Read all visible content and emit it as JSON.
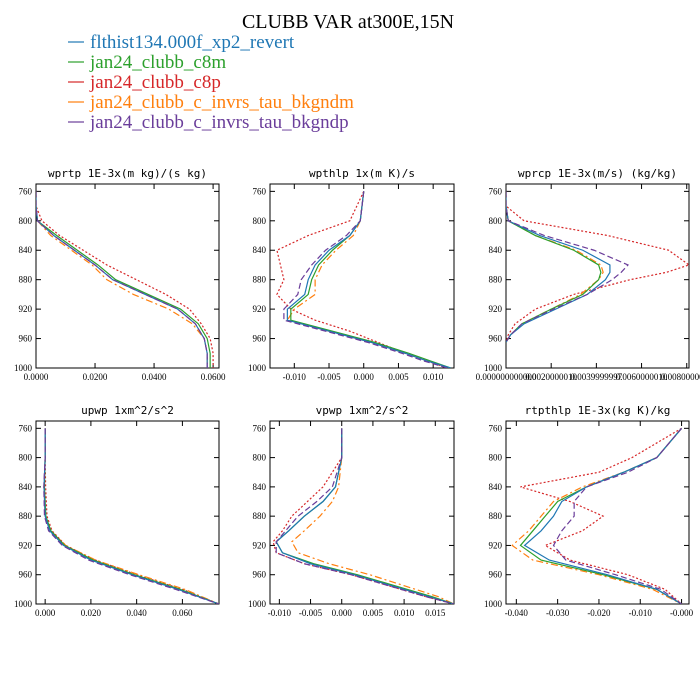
{
  "title": "CLUBB VAR at300E,15N",
  "legend": [
    {
      "label": "flthist134.000f_xp2_revert",
      "color": "#1f77b4",
      "dash": "solid"
    },
    {
      "label": "jan24_clubb_c8m",
      "color": "#2ca02c",
      "dash": "solid"
    },
    {
      "label": "jan24_clubb_c8p",
      "color": "#d62728",
      "dash": "dotted"
    },
    {
      "label": "jan24_clubb_c_invrs_tau_bkgndm",
      "color": "#ff7f0e",
      "dash": "dashdot"
    },
    {
      "label": "jan24_clubb_c_invrs_tau_bkgndp",
      "color": "#6a3d9a",
      "dash": "dashed"
    }
  ],
  "chart_data": [
    {
      "type": "line",
      "title": "wprtp  1E-3x(m kg)/(s kg)",
      "xlim": [
        0.0,
        0.062
      ],
      "ylim": [
        1000,
        750
      ],
      "reverse_y": true,
      "xticks": [
        0.0,
        0.02,
        0.04,
        0.06
      ],
      "xtick_labels": [
        "0.0000",
        "0.0200",
        "0.0400",
        "0.0600"
      ],
      "yticks": [
        760,
        800,
        840,
        880,
        920,
        960,
        1000
      ],
      "y": [
        760,
        780,
        800,
        820,
        840,
        860,
        880,
        900,
        920,
        940,
        960,
        980,
        990,
        1000
      ],
      "series": [
        {
          "name": "flthist134.000f_xp2_revert",
          "values": [
            0.0,
            0.0,
            0.0005,
            0.006,
            0.013,
            0.02,
            0.026,
            0.037,
            0.048,
            0.054,
            0.057,
            0.058,
            0.058,
            0.058
          ]
        },
        {
          "name": "jan24_clubb_c8m",
          "values": [
            0.0,
            0.0,
            0.0005,
            0.007,
            0.014,
            0.021,
            0.027,
            0.038,
            0.049,
            0.055,
            0.058,
            0.059,
            0.059,
            0.059
          ]
        },
        {
          "name": "jan24_clubb_c8p",
          "values": [
            0.0,
            0.0,
            0.002,
            0.008,
            0.016,
            0.024,
            0.034,
            0.044,
            0.052,
            0.056,
            0.059,
            0.06,
            0.06,
            0.06
          ]
        },
        {
          "name": "jan24_clubb_c_invrs_tau_bkgndm",
          "values": [
            0.0,
            0.0,
            0.0005,
            0.005,
            0.012,
            0.019,
            0.024,
            0.033,
            0.045,
            0.053,
            0.057,
            0.058,
            0.058,
            0.058
          ]
        },
        {
          "name": "jan24_clubb_c_invrs_tau_bkgndp",
          "values": [
            0.0,
            0.0,
            0.0005,
            0.006,
            0.013,
            0.02,
            0.026,
            0.037,
            0.048,
            0.054,
            0.057,
            0.058,
            0.058,
            0.058
          ]
        }
      ]
    },
    {
      "type": "line",
      "title": "wpthlp  1x(m K)/s",
      "xlim": [
        -0.0135,
        0.013
      ],
      "ylim": [
        1000,
        750
      ],
      "reverse_y": true,
      "xticks": [
        -0.01,
        -0.005,
        0.0,
        0.005,
        0.01
      ],
      "xtick_labels": [
        "-0.010",
        "-0.005",
        "0.000",
        "0.005",
        "0.010"
      ],
      "yticks": [
        760,
        800,
        840,
        880,
        920,
        960,
        1000
      ],
      "y": [
        760,
        800,
        820,
        840,
        860,
        880,
        900,
        920,
        935,
        950,
        965,
        980,
        990,
        1000
      ],
      "series": [
        {
          "name": "flthist134.000f_xp2_revert",
          "values": [
            0.0,
            -0.0005,
            -0.002,
            -0.005,
            -0.007,
            -0.008,
            -0.0085,
            -0.011,
            -0.011,
            -0.005,
            0.001,
            0.006,
            0.009,
            0.0125
          ]
        },
        {
          "name": "jan24_clubb_c8m",
          "values": [
            0.0,
            -0.0005,
            -0.002,
            -0.0045,
            -0.0065,
            -0.0075,
            -0.008,
            -0.0105,
            -0.0105,
            -0.0045,
            0.0015,
            0.0065,
            0.0095,
            0.0125
          ]
        },
        {
          "name": "jan24_clubb_c8p",
          "values": [
            0.0,
            -0.002,
            -0.008,
            -0.0125,
            -0.012,
            -0.0115,
            -0.0125,
            -0.0105,
            -0.007,
            -0.002,
            0.002,
            0.006,
            0.009,
            0.012
          ]
        },
        {
          "name": "jan24_clubb_c_invrs_tau_bkgndm",
          "values": [
            0.0,
            -0.0005,
            -0.0015,
            -0.004,
            -0.006,
            -0.007,
            -0.007,
            -0.01,
            -0.011,
            -0.005,
            0.001,
            0.006,
            0.009,
            0.0125
          ]
        },
        {
          "name": "jan24_clubb_c_invrs_tau_bkgndp",
          "values": [
            0.0,
            -0.0005,
            -0.0025,
            -0.0055,
            -0.0075,
            -0.009,
            -0.0095,
            -0.0115,
            -0.0115,
            -0.0055,
            0.0005,
            0.0055,
            0.0085,
            0.012
          ]
        }
      ]
    },
    {
      "type": "line",
      "title": "wprcp  1E-3x(m/s) (kg/kg)",
      "xlim": [
        0.0,
        0.0081
      ],
      "ylim": [
        1000,
        750
      ],
      "reverse_y": true,
      "xticks": [
        0.0,
        0.002,
        0.004,
        0.006,
        0.008
      ],
      "xtick_labels": [
        "0.000000000000",
        "0.0020000010",
        "0.0039999997",
        "0.0060000010",
        "0.0080000010"
      ],
      "yticks": [
        760,
        800,
        840,
        880,
        920,
        960,
        1000
      ],
      "y": [
        760,
        780,
        800,
        820,
        840,
        860,
        870,
        880,
        900,
        920,
        940,
        955,
        965
      ],
      "series": [
        {
          "name": "flthist134.000f_xp2_revert",
          "values": [
            0.0,
            0.0,
            0.0001,
            0.0015,
            0.0034,
            0.0046,
            0.0046,
            0.0044,
            0.0036,
            0.0022,
            0.0008,
            0.0002,
            0.0
          ]
        },
        {
          "name": "jan24_clubb_c8m",
          "values": [
            0.0,
            0.0,
            0.0001,
            0.0013,
            0.003,
            0.0041,
            0.0042,
            0.0041,
            0.0034,
            0.002,
            0.0007,
            0.0002,
            0.0
          ]
        },
        {
          "name": "jan24_clubb_c8p",
          "values": [
            0.0,
            0.0,
            0.0008,
            0.0045,
            0.0072,
            0.0081,
            0.0071,
            0.0055,
            0.003,
            0.0013,
            0.0004,
            0.0001,
            0.0
          ]
        },
        {
          "name": "jan24_clubb_c_invrs_tau_bkgndm",
          "values": [
            0.0,
            0.0,
            0.0001,
            0.0013,
            0.0031,
            0.0042,
            0.0043,
            0.0041,
            0.0033,
            0.002,
            0.0007,
            0.0002,
            0.0
          ]
        },
        {
          "name": "jan24_clubb_c_invrs_tau_bkgndp",
          "values": [
            0.0,
            0.0,
            0.0001,
            0.0017,
            0.0039,
            0.0054,
            0.0051,
            0.0047,
            0.0036,
            0.0021,
            0.0007,
            0.0002,
            0.0
          ]
        }
      ]
    },
    {
      "type": "line",
      "title": "upwp  1xm^2/s^2",
      "xlim": [
        -0.004,
        0.076
      ],
      "ylim": [
        1000,
        750
      ],
      "reverse_y": true,
      "xticks": [
        0.0,
        0.02,
        0.04,
        0.06
      ],
      "xtick_labels": [
        "0.000",
        "0.020",
        "0.040",
        "0.060"
      ],
      "yticks": [
        760,
        800,
        840,
        880,
        920,
        960,
        1000
      ],
      "y": [
        760,
        800,
        840,
        880,
        900,
        920,
        940,
        960,
        980,
        1000
      ],
      "series": [
        {
          "name": "flthist134.000f_xp2_revert",
          "values": [
            0.0,
            0.0,
            -0.0005,
            0.0,
            0.002,
            0.008,
            0.02,
            0.038,
            0.058,
            0.076
          ]
        },
        {
          "name": "jan24_clubb_c8m",
          "values": [
            0.0,
            0.0,
            -0.0003,
            0.0003,
            0.0025,
            0.0085,
            0.021,
            0.039,
            0.059,
            0.076
          ]
        },
        {
          "name": "jan24_clubb_c8p",
          "values": [
            0.0,
            0.0,
            0.0002,
            0.0008,
            0.003,
            0.009,
            0.022,
            0.04,
            0.06,
            0.076
          ]
        },
        {
          "name": "jan24_clubb_c_invrs_tau_bkgndm",
          "values": [
            0.0,
            0.0,
            -0.0005,
            0.0,
            0.0025,
            0.009,
            0.022,
            0.041,
            0.061,
            0.076
          ]
        },
        {
          "name": "jan24_clubb_c_invrs_tau_bkgndp",
          "values": [
            0.0,
            0.0,
            -0.0006,
            -0.0003,
            0.0015,
            0.0075,
            0.019,
            0.037,
            0.057,
            0.076
          ]
        }
      ]
    },
    {
      "type": "line",
      "title": "vpwp  1xm^2/s^2",
      "xlim": [
        -0.0115,
        0.018
      ],
      "ylim": [
        1000,
        750
      ],
      "reverse_y": true,
      "xticks": [
        -0.01,
        -0.005,
        0.0,
        0.005,
        0.01,
        0.015
      ],
      "xtick_labels": [
        "-0.010",
        "-0.005",
        "0.000",
        "0.005",
        "0.010",
        "0.015"
      ],
      "yticks": [
        760,
        800,
        840,
        880,
        920,
        960,
        1000
      ],
      "y": [
        760,
        800,
        840,
        860,
        880,
        900,
        915,
        930,
        945,
        960,
        975,
        990,
        1000
      ],
      "series": [
        {
          "name": "flthist134.000f_xp2_revert",
          "values": [
            0.0,
            0.0,
            -0.001,
            -0.003,
            -0.006,
            -0.0085,
            -0.0105,
            -0.0095,
            -0.005,
            0.002,
            0.008,
            0.014,
            0.018
          ]
        },
        {
          "name": "jan24_clubb_c8m",
          "values": [
            0.0,
            0.0,
            -0.001,
            -0.003,
            -0.006,
            -0.0085,
            -0.0105,
            -0.0095,
            -0.0045,
            0.0025,
            0.0085,
            0.0145,
            0.018
          ]
        },
        {
          "name": "jan24_clubb_c8p",
          "values": [
            0.0,
            0.0,
            -0.003,
            -0.0055,
            -0.008,
            -0.0095,
            -0.011,
            -0.0105,
            -0.006,
            0.0015,
            0.0075,
            0.0135,
            0.018
          ]
        },
        {
          "name": "jan24_clubb_c_invrs_tau_bkgndm",
          "values": [
            0.0,
            0.0,
            -0.0005,
            -0.0015,
            -0.0035,
            -0.006,
            -0.008,
            -0.007,
            -0.002,
            0.0045,
            0.01,
            0.0155,
            0.018
          ]
        },
        {
          "name": "jan24_clubb_c_invrs_tau_bkgndp",
          "values": [
            0.0,
            0.0,
            -0.0015,
            -0.004,
            -0.007,
            -0.009,
            -0.0105,
            -0.0105,
            -0.006,
            0.0015,
            0.0075,
            0.0135,
            0.018
          ]
        }
      ]
    },
    {
      "type": "line",
      "title": "rtpthlp  1E-3x(kg K)/kg",
      "xlim": [
        -0.0425,
        0.0018
      ],
      "ylim": [
        1000,
        750
      ],
      "reverse_y": true,
      "xticks": [
        -0.04,
        -0.03,
        -0.02,
        -0.01,
        0.0
      ],
      "xtick_labels": [
        "-0.040",
        "-0.030",
        "-0.020",
        "-0.010",
        "-0.000"
      ],
      "yticks": [
        760,
        800,
        840,
        880,
        920,
        960,
        1000
      ],
      "y": [
        760,
        800,
        820,
        840,
        860,
        880,
        900,
        920,
        940,
        960,
        980,
        1000
      ],
      "series": [
        {
          "name": "flthist134.000f_xp2_revert",
          "values": [
            0.0,
            -0.006,
            -0.014,
            -0.023,
            -0.029,
            -0.031,
            -0.034,
            -0.038,
            -0.032,
            -0.018,
            -0.006,
            0.0
          ]
        },
        {
          "name": "jan24_clubb_c8m",
          "values": [
            0.0,
            -0.006,
            -0.014,
            -0.023,
            -0.03,
            -0.033,
            -0.036,
            -0.039,
            -0.034,
            -0.019,
            -0.006,
            0.0
          ]
        },
        {
          "name": "jan24_clubb_c8p",
          "values": [
            0.0,
            -0.012,
            -0.02,
            -0.039,
            -0.027,
            -0.019,
            -0.024,
            -0.033,
            -0.027,
            -0.013,
            -0.004,
            0.0
          ]
        },
        {
          "name": "jan24_clubb_c_invrs_tau_bkgndm",
          "values": [
            0.0,
            -0.006,
            -0.014,
            -0.024,
            -0.031,
            -0.034,
            -0.037,
            -0.041,
            -0.036,
            -0.02,
            -0.007,
            0.0
          ]
        },
        {
          "name": "jan24_clubb_c_invrs_tau_bkgndp",
          "values": [
            0.0,
            -0.006,
            -0.013,
            -0.023,
            -0.026,
            -0.026,
            -0.029,
            -0.031,
            -0.028,
            -0.016,
            -0.005,
            0.0
          ]
        }
      ]
    }
  ]
}
